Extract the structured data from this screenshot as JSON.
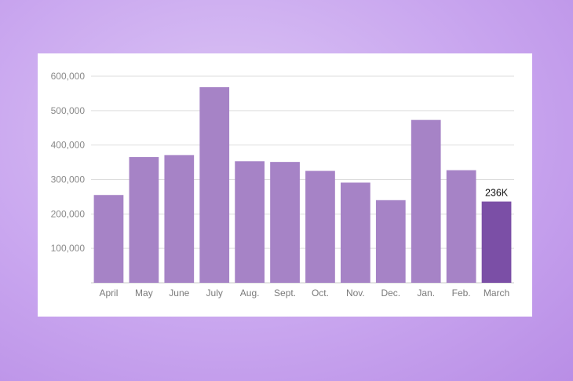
{
  "colors": {
    "bar": "#a683c6",
    "highlight": "#7b4fa6",
    "grid": "#dddddd",
    "axis": "#c8c8c8"
  },
  "chart_data": {
    "type": "bar",
    "categories": [
      "April",
      "May",
      "June",
      "July",
      "Aug.",
      "Sept.",
      "Oct.",
      "Nov.",
      "Dec.",
      "Jan.",
      "Feb.",
      "March"
    ],
    "values": [
      255000,
      365000,
      371000,
      568000,
      353000,
      351000,
      325000,
      291000,
      240000,
      473000,
      327000,
      236000
    ],
    "highlight_index": 11,
    "data_labels": [
      {
        "index": 11,
        "text": "236K"
      }
    ],
    "yticks": [
      "100,000",
      "200,000",
      "300,000",
      "400,000",
      "500,000",
      "600,000"
    ],
    "ytick_values": [
      100000,
      200000,
      300000,
      400000,
      500000,
      600000
    ],
    "ylim": [
      0,
      600000
    ],
    "grid": true
  }
}
